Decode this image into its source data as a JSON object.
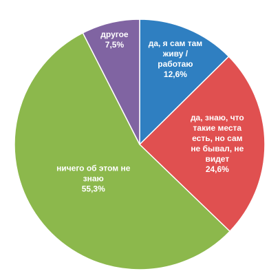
{
  "chart_data": {
    "type": "pie",
    "categories": [
      "да, я сам там живу / работаю",
      "да, знаю, что такие места есть, но сам не бывал, не видет",
      "ничего об этом не знаю",
      "другое"
    ],
    "values": [
      12.6,
      24.6,
      55.3,
      7.5
    ],
    "value_labels": [
      "12,6%",
      "24,6%",
      "55,3%",
      "7,5%"
    ],
    "colors": [
      "#2f7fc1",
      "#e05050",
      "#8cb84c",
      "#8064a2"
    ]
  }
}
